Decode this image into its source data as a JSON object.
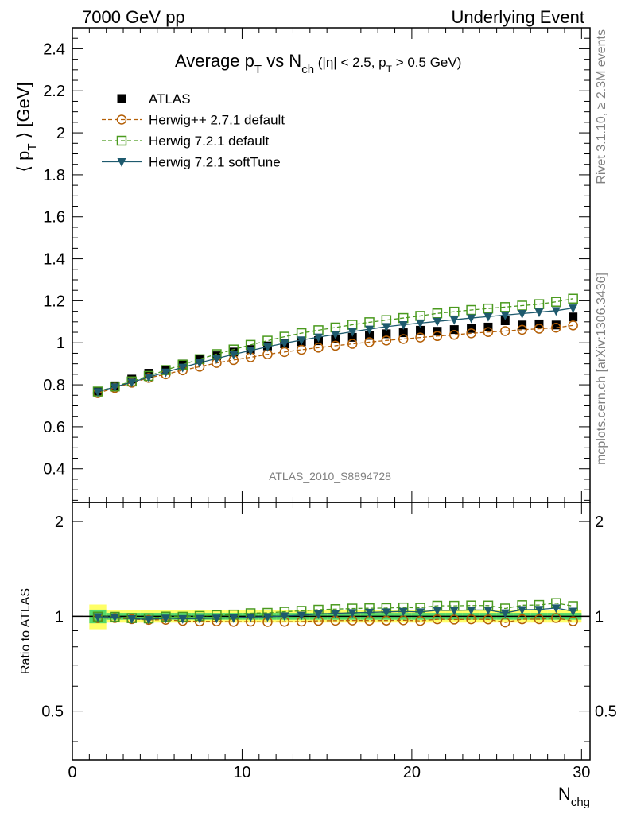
{
  "header": {
    "left": "7000 GeV pp",
    "right": "Underlying Event"
  },
  "side_text": {
    "rivet": "Rivet 3.1.10, ≥ 2.3M events",
    "mcplots": "mcplots.cern.ch [arXiv:1306.3436]"
  },
  "watermark": "ATLAS_2010_S8894728",
  "chart_data": {
    "type": "scatter",
    "title": {
      "main": "Average p",
      "sub_T": "T",
      "vs": " vs N",
      "sub_ch": "ch",
      "cuts_a": " (|η| < 2.5, p",
      "cuts_sub": "T",
      "cuts_b": " > 0.5 GeV)"
    },
    "ylabel": {
      "open": "⟨ p",
      "sub": "T",
      "close": " ⟩ [GeV]"
    },
    "xlabel": {
      "main": "N",
      "sub": "chg"
    },
    "ratio_ylabel": "Ratio to ATLAS",
    "xlim": [
      0,
      30.5
    ],
    "ylim": [
      0.24,
      2.5
    ],
    "ratio_ylim": [
      0.35,
      2.3
    ],
    "log_ratio_axis": true,
    "x": [
      1.5,
      2.5,
      3.5,
      4.5,
      5.5,
      6.5,
      7.5,
      8.5,
      9.5,
      10.5,
      11.5,
      12.5,
      13.5,
      14.5,
      15.5,
      16.5,
      17.5,
      18.5,
      19.5,
      20.5,
      21.5,
      22.5,
      23.5,
      24.5,
      25.5,
      26.5,
      27.5,
      28.5,
      29.5
    ],
    "xticks": [
      0,
      10,
      20,
      30
    ],
    "yticks": [
      0.4,
      0.6,
      0.8,
      1,
      1.2,
      1.4,
      1.6,
      1.8,
      2,
      2.2,
      2.4
    ],
    "ratio_ticks": [
      0.5,
      1,
      2
    ],
    "ratio_tick_labels": [
      "0.5",
      "1",
      "2"
    ],
    "series": [
      {
        "name": "ATLAS",
        "marker": "filled-square",
        "color": "#000000",
        "values": [
          0.77,
          0.795,
          0.827,
          0.855,
          0.872,
          0.899,
          0.92,
          0.938,
          0.956,
          0.968,
          0.985,
          0.995,
          1.005,
          1.01,
          1.018,
          1.026,
          1.035,
          1.043,
          1.048,
          1.06,
          1.055,
          1.063,
          1.068,
          1.075,
          1.105,
          1.085,
          1.09,
          1.085,
          1.123
        ]
      },
      {
        "name": "Herwig++ 2.7.1 default",
        "marker": "open-circle",
        "color": "#b45f06",
        "dashed": true,
        "values": [
          0.76,
          0.785,
          0.81,
          0.833,
          0.85,
          0.869,
          0.886,
          0.904,
          0.918,
          0.931,
          0.945,
          0.956,
          0.967,
          0.977,
          0.986,
          0.995,
          1.003,
          1.011,
          1.018,
          1.025,
          1.032,
          1.038,
          1.045,
          1.051,
          1.056,
          1.062,
          1.067,
          1.072,
          1.083
        ]
      },
      {
        "name": "Herwig 7.2.1 default",
        "marker": "open-square",
        "color": "#4a9a1e",
        "dashed": true,
        "values": [
          0.768,
          0.792,
          0.816,
          0.842,
          0.87,
          0.896,
          0.922,
          0.946,
          0.968,
          0.99,
          1.01,
          1.029,
          1.046,
          1.06,
          1.073,
          1.086,
          1.098,
          1.108,
          1.118,
          1.128,
          1.14,
          1.148,
          1.156,
          1.163,
          1.17,
          1.177,
          1.184,
          1.195,
          1.21
        ]
      },
      {
        "name": "Herwig 7.2.1 softTune",
        "marker": "filled-triangle-down",
        "color": "#1e5a6e",
        "values": [
          0.767,
          0.79,
          0.812,
          0.836,
          0.86,
          0.883,
          0.905,
          0.925,
          0.945,
          0.963,
          0.981,
          0.998,
          1.013,
          1.027,
          1.04,
          1.053,
          1.065,
          1.077,
          1.086,
          1.094,
          1.102,
          1.11,
          1.118,
          1.125,
          1.132,
          1.139,
          1.146,
          1.153,
          1.165
        ]
      }
    ],
    "uncertainty_band": {
      "stat_color": "#55d96b",
      "total_color": "#ffff66"
    }
  }
}
